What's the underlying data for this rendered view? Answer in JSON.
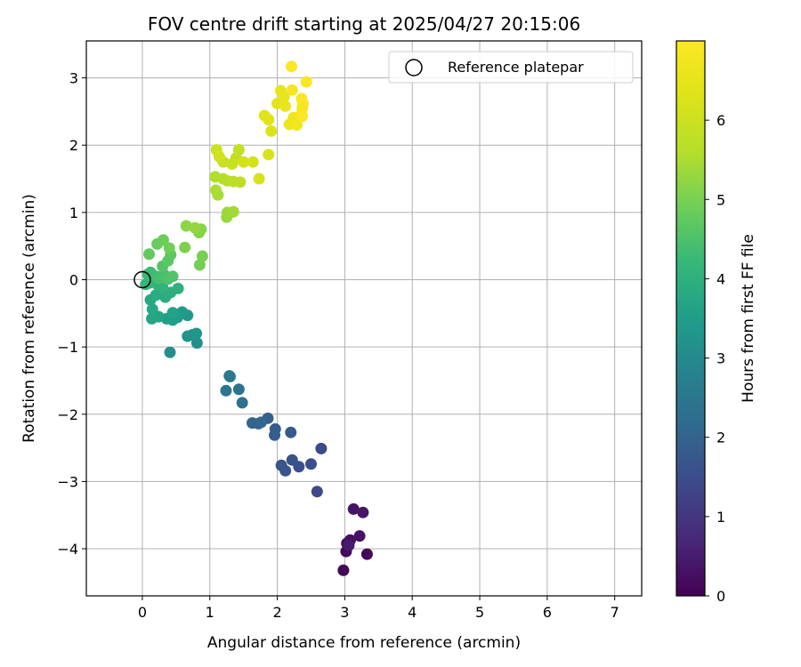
{
  "chart_data": {
    "type": "scatter",
    "title": "FOV centre drift starting at 2025/04/27 20:15:06",
    "xlabel": "Angular distance from reference (arcmin)",
    "ylabel": "Rotation from reference (arcmin)",
    "xlim": [
      -0.83,
      7.4
    ],
    "ylim": [
      -4.7,
      3.55
    ],
    "xticks": [
      0,
      1,
      2,
      3,
      4,
      5,
      6,
      7
    ],
    "yticks": [
      3,
      2,
      1,
      0,
      -1,
      -2,
      -3,
      -4
    ],
    "grid": true,
    "legend": {
      "placement": "top-right",
      "entries": [
        "Reference platepar"
      ]
    },
    "reference_point": {
      "x": 0,
      "y": 0
    },
    "colorbar": {
      "label": "Hours from first FF file",
      "ticks": [
        0,
        1,
        2,
        3,
        4,
        5,
        6
      ],
      "range": [
        0,
        7
      ],
      "colormap": "viridis"
    },
    "series": [
      {
        "points": [
          {
            "x": 2.98,
            "y": -4.32,
            "t": 0.05
          },
          {
            "x": 3.02,
            "y": -4.04,
            "t": 0.1
          },
          {
            "x": 3.33,
            "y": -4.08,
            "t": 0.15
          },
          {
            "x": 3.03,
            "y": -3.92,
            "t": 0.2
          },
          {
            "x": 3.08,
            "y": -3.87,
            "t": 0.25
          },
          {
            "x": 3.22,
            "y": -3.81,
            "t": 0.3
          },
          {
            "x": 3.13,
            "y": -3.41,
            "t": 0.35
          },
          {
            "x": 3.27,
            "y": -3.46,
            "t": 0.4
          },
          {
            "x": 3.06,
            "y": -3.95,
            "t": 0.45
          },
          {
            "x": 2.59,
            "y": -3.15,
            "t": 1.4
          },
          {
            "x": 2.65,
            "y": -2.51,
            "t": 1.45
          },
          {
            "x": 2.5,
            "y": -2.74,
            "t": 1.5
          },
          {
            "x": 2.32,
            "y": -2.78,
            "t": 1.55
          },
          {
            "x": 2.22,
            "y": -2.68,
            "t": 1.6
          },
          {
            "x": 2.12,
            "y": -2.84,
            "t": 1.65
          },
          {
            "x": 2.06,
            "y": -2.76,
            "t": 1.7
          },
          {
            "x": 2.2,
            "y": -2.27,
            "t": 1.75
          },
          {
            "x": 1.97,
            "y": -2.22,
            "t": 1.8
          },
          {
            "x": 1.96,
            "y": -2.31,
            "t": 1.85
          },
          {
            "x": 1.86,
            "y": -2.06,
            "t": 1.9
          },
          {
            "x": 1.72,
            "y": -2.14,
            "t": 1.95
          },
          {
            "x": 1.63,
            "y": -2.13,
            "t": 2.0
          },
          {
            "x": 1.76,
            "y": -2.12,
            "t": 2.05
          },
          {
            "x": 1.48,
            "y": -1.83,
            "t": 2.35
          },
          {
            "x": 1.43,
            "y": -1.63,
            "t": 2.4
          },
          {
            "x": 1.24,
            "y": -1.65,
            "t": 2.45
          },
          {
            "x": 1.29,
            "y": -1.43,
            "t": 2.5
          },
          {
            "x": 1.3,
            "y": -1.44,
            "t": 2.55
          },
          {
            "x": 0.41,
            "y": -1.08,
            "t": 3.1
          },
          {
            "x": 0.81,
            "y": -0.94,
            "t": 3.15
          },
          {
            "x": 0.67,
            "y": -0.84,
            "t": 3.2
          },
          {
            "x": 0.74,
            "y": -0.82,
            "t": 3.25
          },
          {
            "x": 0.8,
            "y": -0.8,
            "t": 3.3
          },
          {
            "x": 0.67,
            "y": -0.53,
            "t": 3.35
          },
          {
            "x": 0.59,
            "y": -0.48,
            "t": 3.4
          },
          {
            "x": 0.52,
            "y": -0.56,
            "t": 3.45
          },
          {
            "x": 0.45,
            "y": -0.6,
            "t": 3.5
          },
          {
            "x": 0.36,
            "y": -0.58,
            "t": 3.55
          },
          {
            "x": 0.45,
            "y": -0.49,
            "t": 3.6
          },
          {
            "x": 0.24,
            "y": -0.55,
            "t": 3.65
          },
          {
            "x": 0.14,
            "y": -0.58,
            "t": 3.7
          },
          {
            "x": 0.15,
            "y": -0.44,
            "t": 3.75
          },
          {
            "x": 0.12,
            "y": -0.3,
            "t": 3.8
          },
          {
            "x": 0.2,
            "y": -0.23,
            "t": 3.85
          },
          {
            "x": 0.34,
            "y": -0.26,
            "t": 3.9
          },
          {
            "x": 0.42,
            "y": -0.19,
            "t": 3.95
          },
          {
            "x": 0.53,
            "y": -0.13,
            "t": 4.0
          },
          {
            "x": 0.3,
            "y": -0.11,
            "t": 4.05
          },
          {
            "x": 0.22,
            "y": -0.07,
            "t": 4.1
          },
          {
            "x": 0.1,
            "y": -0.05,
            "t": 4.15
          },
          {
            "x": 0.05,
            "y": -0.07,
            "t": 4.2
          },
          {
            "x": 0.08,
            "y": 0.08,
            "t": 4.25
          },
          {
            "x": 0.12,
            "y": 0.11,
            "t": 4.3
          },
          {
            "x": 0.2,
            "y": 0.05,
            "t": 4.35
          },
          {
            "x": 0.25,
            "y": 0.02,
            "t": 4.4
          },
          {
            "x": 0.32,
            "y": 0.08,
            "t": 4.45
          },
          {
            "x": 0.38,
            "y": 0.01,
            "t": 4.5
          },
          {
            "x": 0.45,
            "y": 0.05,
            "t": 4.55
          },
          {
            "x": 0.3,
            "y": 0.2,
            "t": 4.6
          },
          {
            "x": 0.38,
            "y": 0.28,
            "t": 4.65
          },
          {
            "x": 0.42,
            "y": 0.37,
            "t": 4.7
          },
          {
            "x": 0.1,
            "y": 0.38,
            "t": 4.75
          },
          {
            "x": 0.22,
            "y": 0.53,
            "t": 4.8
          },
          {
            "x": 0.31,
            "y": 0.59,
            "t": 4.85
          },
          {
            "x": 0.4,
            "y": 0.47,
            "t": 4.9
          },
          {
            "x": 0.85,
            "y": 0.22,
            "t": 4.95
          },
          {
            "x": 0.89,
            "y": 0.35,
            "t": 5.0
          },
          {
            "x": 0.63,
            "y": 0.48,
            "t": 5.05
          },
          {
            "x": 0.84,
            "y": 0.7,
            "t": 5.1
          },
          {
            "x": 0.87,
            "y": 0.75,
            "t": 5.15
          },
          {
            "x": 0.65,
            "y": 0.8,
            "t": 5.2
          },
          {
            "x": 0.78,
            "y": 0.77,
            "t": 5.25
          },
          {
            "x": 1.25,
            "y": 0.93,
            "t": 5.3
          },
          {
            "x": 1.26,
            "y": 1.0,
            "t": 5.35
          },
          {
            "x": 1.35,
            "y": 1.01,
            "t": 5.4
          },
          {
            "x": 1.12,
            "y": 1.26,
            "t": 5.45
          },
          {
            "x": 1.09,
            "y": 1.33,
            "t": 5.5
          },
          {
            "x": 1.08,
            "y": 1.53,
            "t": 5.55
          },
          {
            "x": 1.2,
            "y": 1.5,
            "t": 5.6
          },
          {
            "x": 1.26,
            "y": 1.47,
            "t": 5.65
          },
          {
            "x": 1.35,
            "y": 1.46,
            "t": 5.7
          },
          {
            "x": 1.45,
            "y": 1.45,
            "t": 5.75
          },
          {
            "x": 1.39,
            "y": 1.81,
            "t": 5.8
          },
          {
            "x": 1.43,
            "y": 1.93,
            "t": 5.85
          },
          {
            "x": 1.33,
            "y": 1.72,
            "t": 5.9
          },
          {
            "x": 1.2,
            "y": 1.75,
            "t": 5.95
          },
          {
            "x": 1.1,
            "y": 1.93,
            "t": 6.0
          },
          {
            "x": 1.14,
            "y": 1.83,
            "t": 6.05
          },
          {
            "x": 1.5,
            "y": 1.75,
            "t": 6.1
          },
          {
            "x": 1.64,
            "y": 1.75,
            "t": 6.15
          },
          {
            "x": 1.73,
            "y": 1.5,
            "t": 6.2
          },
          {
            "x": 1.87,
            "y": 1.86,
            "t": 6.25
          },
          {
            "x": 1.91,
            "y": 2.21,
            "t": 6.3
          },
          {
            "x": 1.87,
            "y": 2.38,
            "t": 6.35
          },
          {
            "x": 1.81,
            "y": 2.44,
            "t": 6.4
          },
          {
            "x": 2.0,
            "y": 2.62,
            "t": 6.45
          },
          {
            "x": 2.05,
            "y": 2.81,
            "t": 6.5
          },
          {
            "x": 2.1,
            "y": 2.72,
            "t": 6.55
          },
          {
            "x": 2.12,
            "y": 2.58,
            "t": 6.6
          },
          {
            "x": 2.18,
            "y": 2.31,
            "t": 6.65
          },
          {
            "x": 2.24,
            "y": 2.41,
            "t": 6.7
          },
          {
            "x": 2.29,
            "y": 2.3,
            "t": 6.75
          },
          {
            "x": 2.22,
            "y": 2.82,
            "t": 6.8
          },
          {
            "x": 2.36,
            "y": 2.46,
            "t": 6.85
          },
          {
            "x": 2.37,
            "y": 2.55,
            "t": 6.88
          },
          {
            "x": 2.38,
            "y": 2.62,
            "t": 6.9
          },
          {
            "x": 2.36,
            "y": 2.69,
            "t": 6.92
          },
          {
            "x": 2.43,
            "y": 2.94,
            "t": 6.94
          },
          {
            "x": 2.21,
            "y": 3.17,
            "t": 6.96
          },
          {
            "x": 2.37,
            "y": 2.43,
            "t": 6.98
          }
        ]
      }
    ]
  }
}
